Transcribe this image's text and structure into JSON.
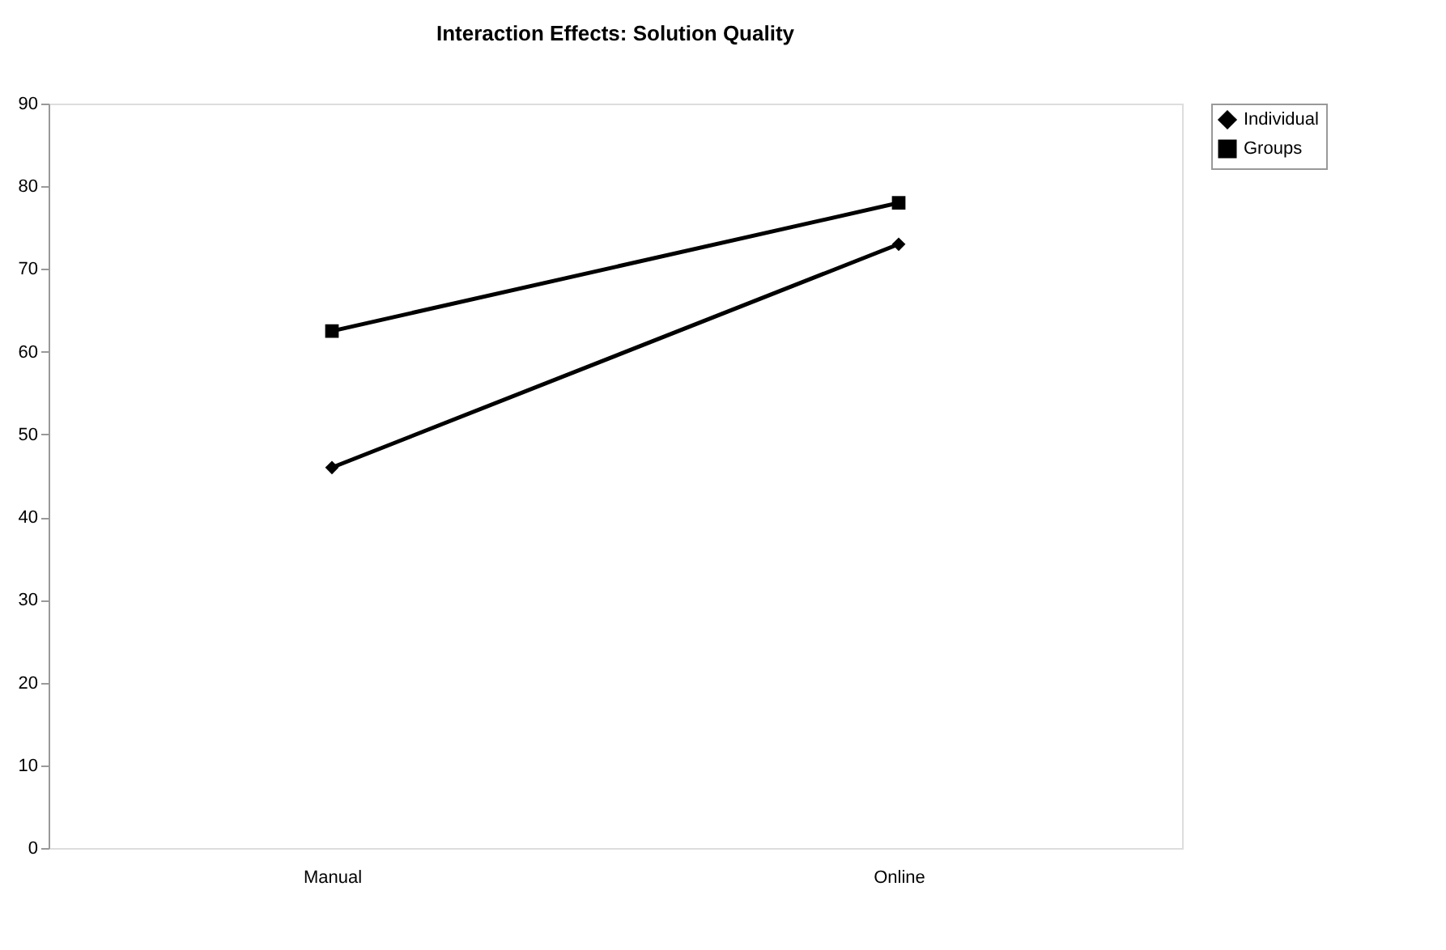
{
  "chart_data": {
    "type": "line",
    "title": "Interaction Effects: Solution Quality",
    "categories": [
      "Manual",
      "Online"
    ],
    "series": [
      {
        "name": "Individual",
        "color": "#000000",
        "marker": "diamond",
        "values": [
          46,
          73
        ]
      },
      {
        "name": "Groups",
        "color": "#000000",
        "marker": "square",
        "values": [
          62.5,
          78
        ]
      }
    ],
    "ylim": [
      0,
      90
    ],
    "yticks": [
      0,
      10,
      20,
      30,
      40,
      50,
      60,
      70,
      80,
      90
    ],
    "grid": false,
    "legend": "right",
    "line_style": "solid"
  }
}
